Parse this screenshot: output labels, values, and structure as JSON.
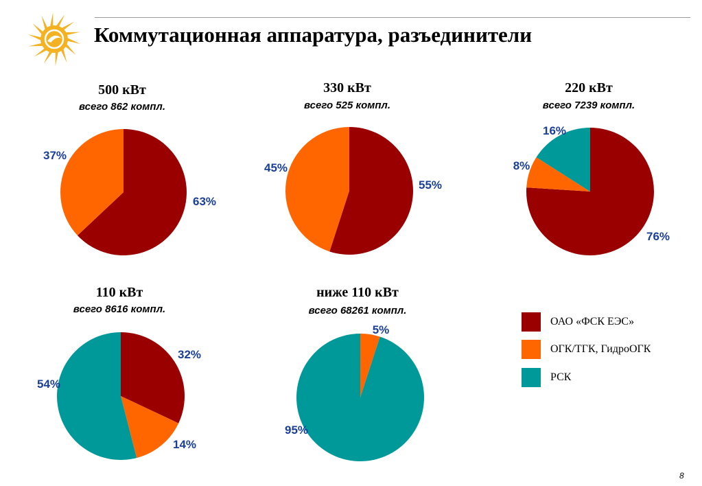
{
  "slide": {
    "title": "Коммутационная аппаратура, разъединители",
    "page_number": "8"
  },
  "logo": {
    "icon": "sun-logo-icon",
    "color": "#f4b223"
  },
  "colors": {
    "fsk": "#9b0000",
    "ogk": "#ff6600",
    "rsk": "#00999a",
    "label": "#1a3f9a"
  },
  "legend": {
    "items": [
      {
        "label": "ОАО «ФСК ЕЭС»",
        "color": "#9b0000"
      },
      {
        "label": "ОГК/ТГК, ГидроОГК",
        "color": "#ff6600"
      },
      {
        "label": "РСК",
        "color": "#00999a"
      }
    ]
  },
  "chart_data": [
    {
      "type": "pie",
      "title": "500 кВт",
      "subtitle": "всего 862 компл.",
      "slices": [
        {
          "name": "ОАО «ФСК ЕЭС»",
          "value": 63,
          "label": "63%",
          "color": "#9b0000"
        },
        {
          "name": "ОГК/ТГК, ГидроОГК",
          "value": 37,
          "label": "37%",
          "color": "#ff6600"
        }
      ]
    },
    {
      "type": "pie",
      "title": "330 кВт",
      "subtitle": "всего 525 компл.",
      "slices": [
        {
          "name": "ОАО «ФСК ЕЭС»",
          "value": 55,
          "label": "55%",
          "color": "#9b0000"
        },
        {
          "name": "ОГК/ТГК, ГидроОГК",
          "value": 45,
          "label": "45%",
          "color": "#ff6600"
        }
      ]
    },
    {
      "type": "pie",
      "title": "220 кВт",
      "subtitle": "всего 7239 компл.",
      "slices": [
        {
          "name": "ОАО «ФСК ЕЭС»",
          "value": 76,
          "label": "76%",
          "color": "#9b0000"
        },
        {
          "name": "ОГК/ТГК, ГидроОГК",
          "value": 8,
          "label": "8%",
          "color": "#ff6600"
        },
        {
          "name": "РСК",
          "value": 16,
          "label": "16%",
          "color": "#00999a"
        }
      ]
    },
    {
      "type": "pie",
      "title": "110 кВт",
      "subtitle": "всего 8616 компл.",
      "slices": [
        {
          "name": "ОАО «ФСК ЕЭС»",
          "value": 32,
          "label": "32%",
          "color": "#9b0000"
        },
        {
          "name": "ОГК/ТГК, ГидроОГК",
          "value": 14,
          "label": "14%",
          "color": "#ff6600"
        },
        {
          "name": "РСК",
          "value": 54,
          "label": "54%",
          "color": "#00999a"
        }
      ]
    },
    {
      "type": "pie",
      "title": "ниже 110 кВт",
      "subtitle": "всего 68261 компл.",
      "slices": [
        {
          "name": "ОГК/ТГК, ГидроОГК",
          "value": 5,
          "label": "5%",
          "color": "#ff6600"
        },
        {
          "name": "РСК",
          "value": 95,
          "label": "95%",
          "color": "#00999a"
        }
      ]
    }
  ]
}
